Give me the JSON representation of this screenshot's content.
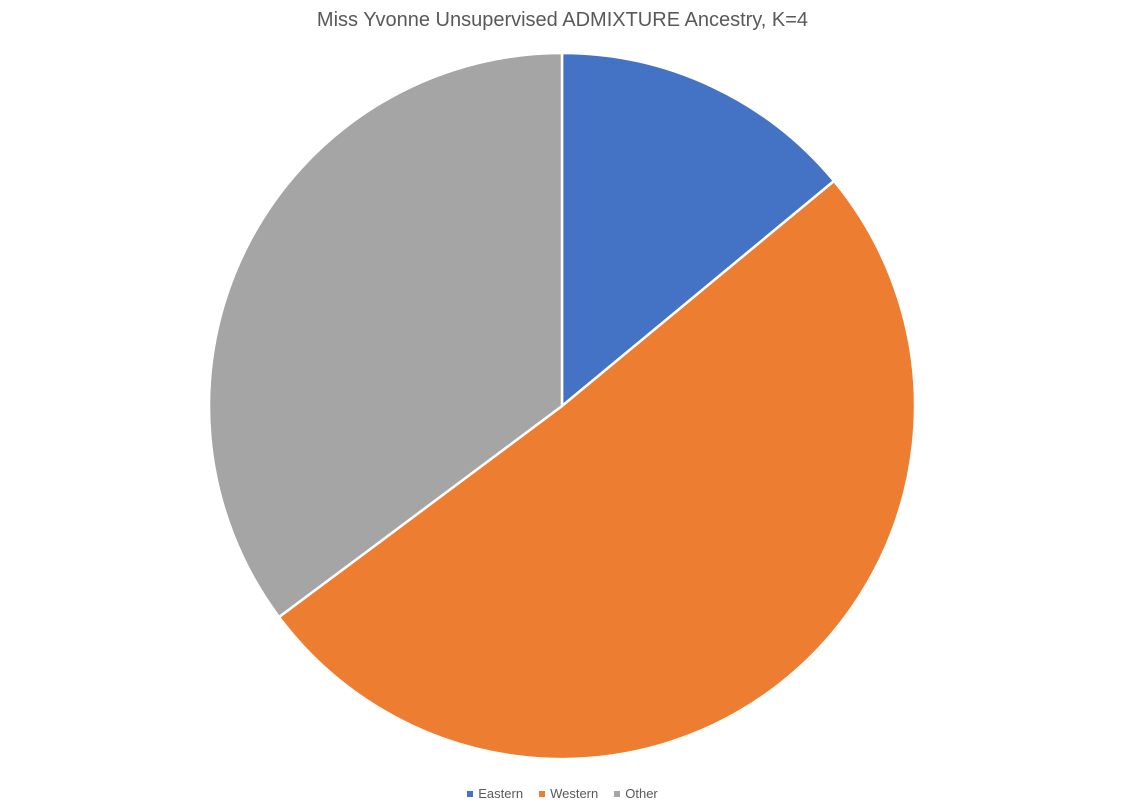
{
  "chart_data": {
    "type": "pie",
    "title": "Miss Yvonne Unsupervised ADMIXTURE Ancestry, K=4",
    "slices": [
      {
        "label": "Eastern",
        "value": 14.0,
        "color": "#4472C4"
      },
      {
        "label": "Western",
        "value": 50.8,
        "color": "#ED7D31"
      },
      {
        "label": "Other",
        "value": 35.2,
        "color": "#A5A5A5"
      }
    ],
    "start_angle_deg": 0,
    "direction": "clockwise",
    "legend_position": "bottom"
  }
}
